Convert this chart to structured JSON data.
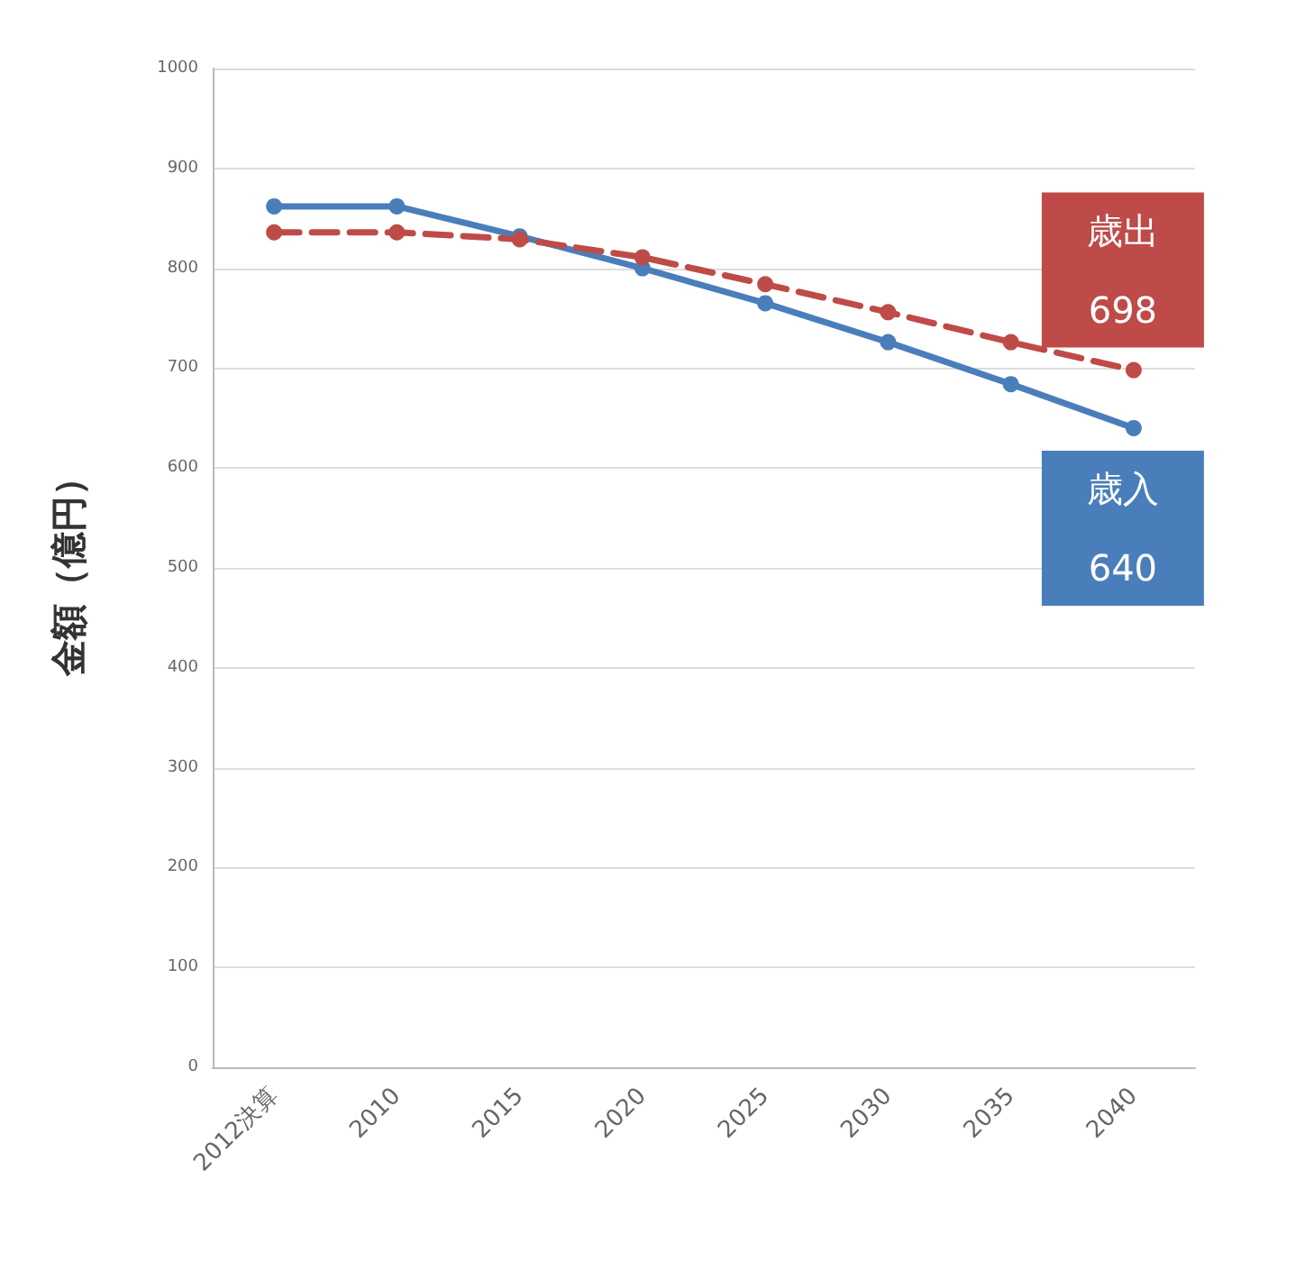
{
  "chart_data": {
    "type": "line",
    "ylabel": "金額（億円）",
    "categories": [
      "2012決算",
      "2010",
      "2015",
      "2020",
      "2025",
      "2030",
      "2035",
      "2040"
    ],
    "ylim": [
      0,
      1000
    ],
    "yticks": [
      0,
      100,
      200,
      300,
      400,
      500,
      600,
      700,
      800,
      900,
      1000
    ],
    "grid": "y",
    "legend": false,
    "marker": "circle",
    "series": [
      {
        "name": "歳入",
        "color": "#4a7ebb",
        "line_style": "solid",
        "values": [
          862,
          862,
          832,
          800,
          765,
          726,
          684,
          640
        ],
        "value_labels": [
          null,
          null,
          null,
          null,
          null,
          null,
          null,
          "640"
        ]
      },
      {
        "name": "歳出",
        "color": "#be4b48",
        "line_style": "dashed",
        "values": [
          836,
          836,
          829,
          811,
          784,
          756,
          726,
          698
        ],
        "value_labels": [
          null,
          null,
          null,
          null,
          null,
          null,
          null,
          "698"
        ]
      }
    ]
  }
}
